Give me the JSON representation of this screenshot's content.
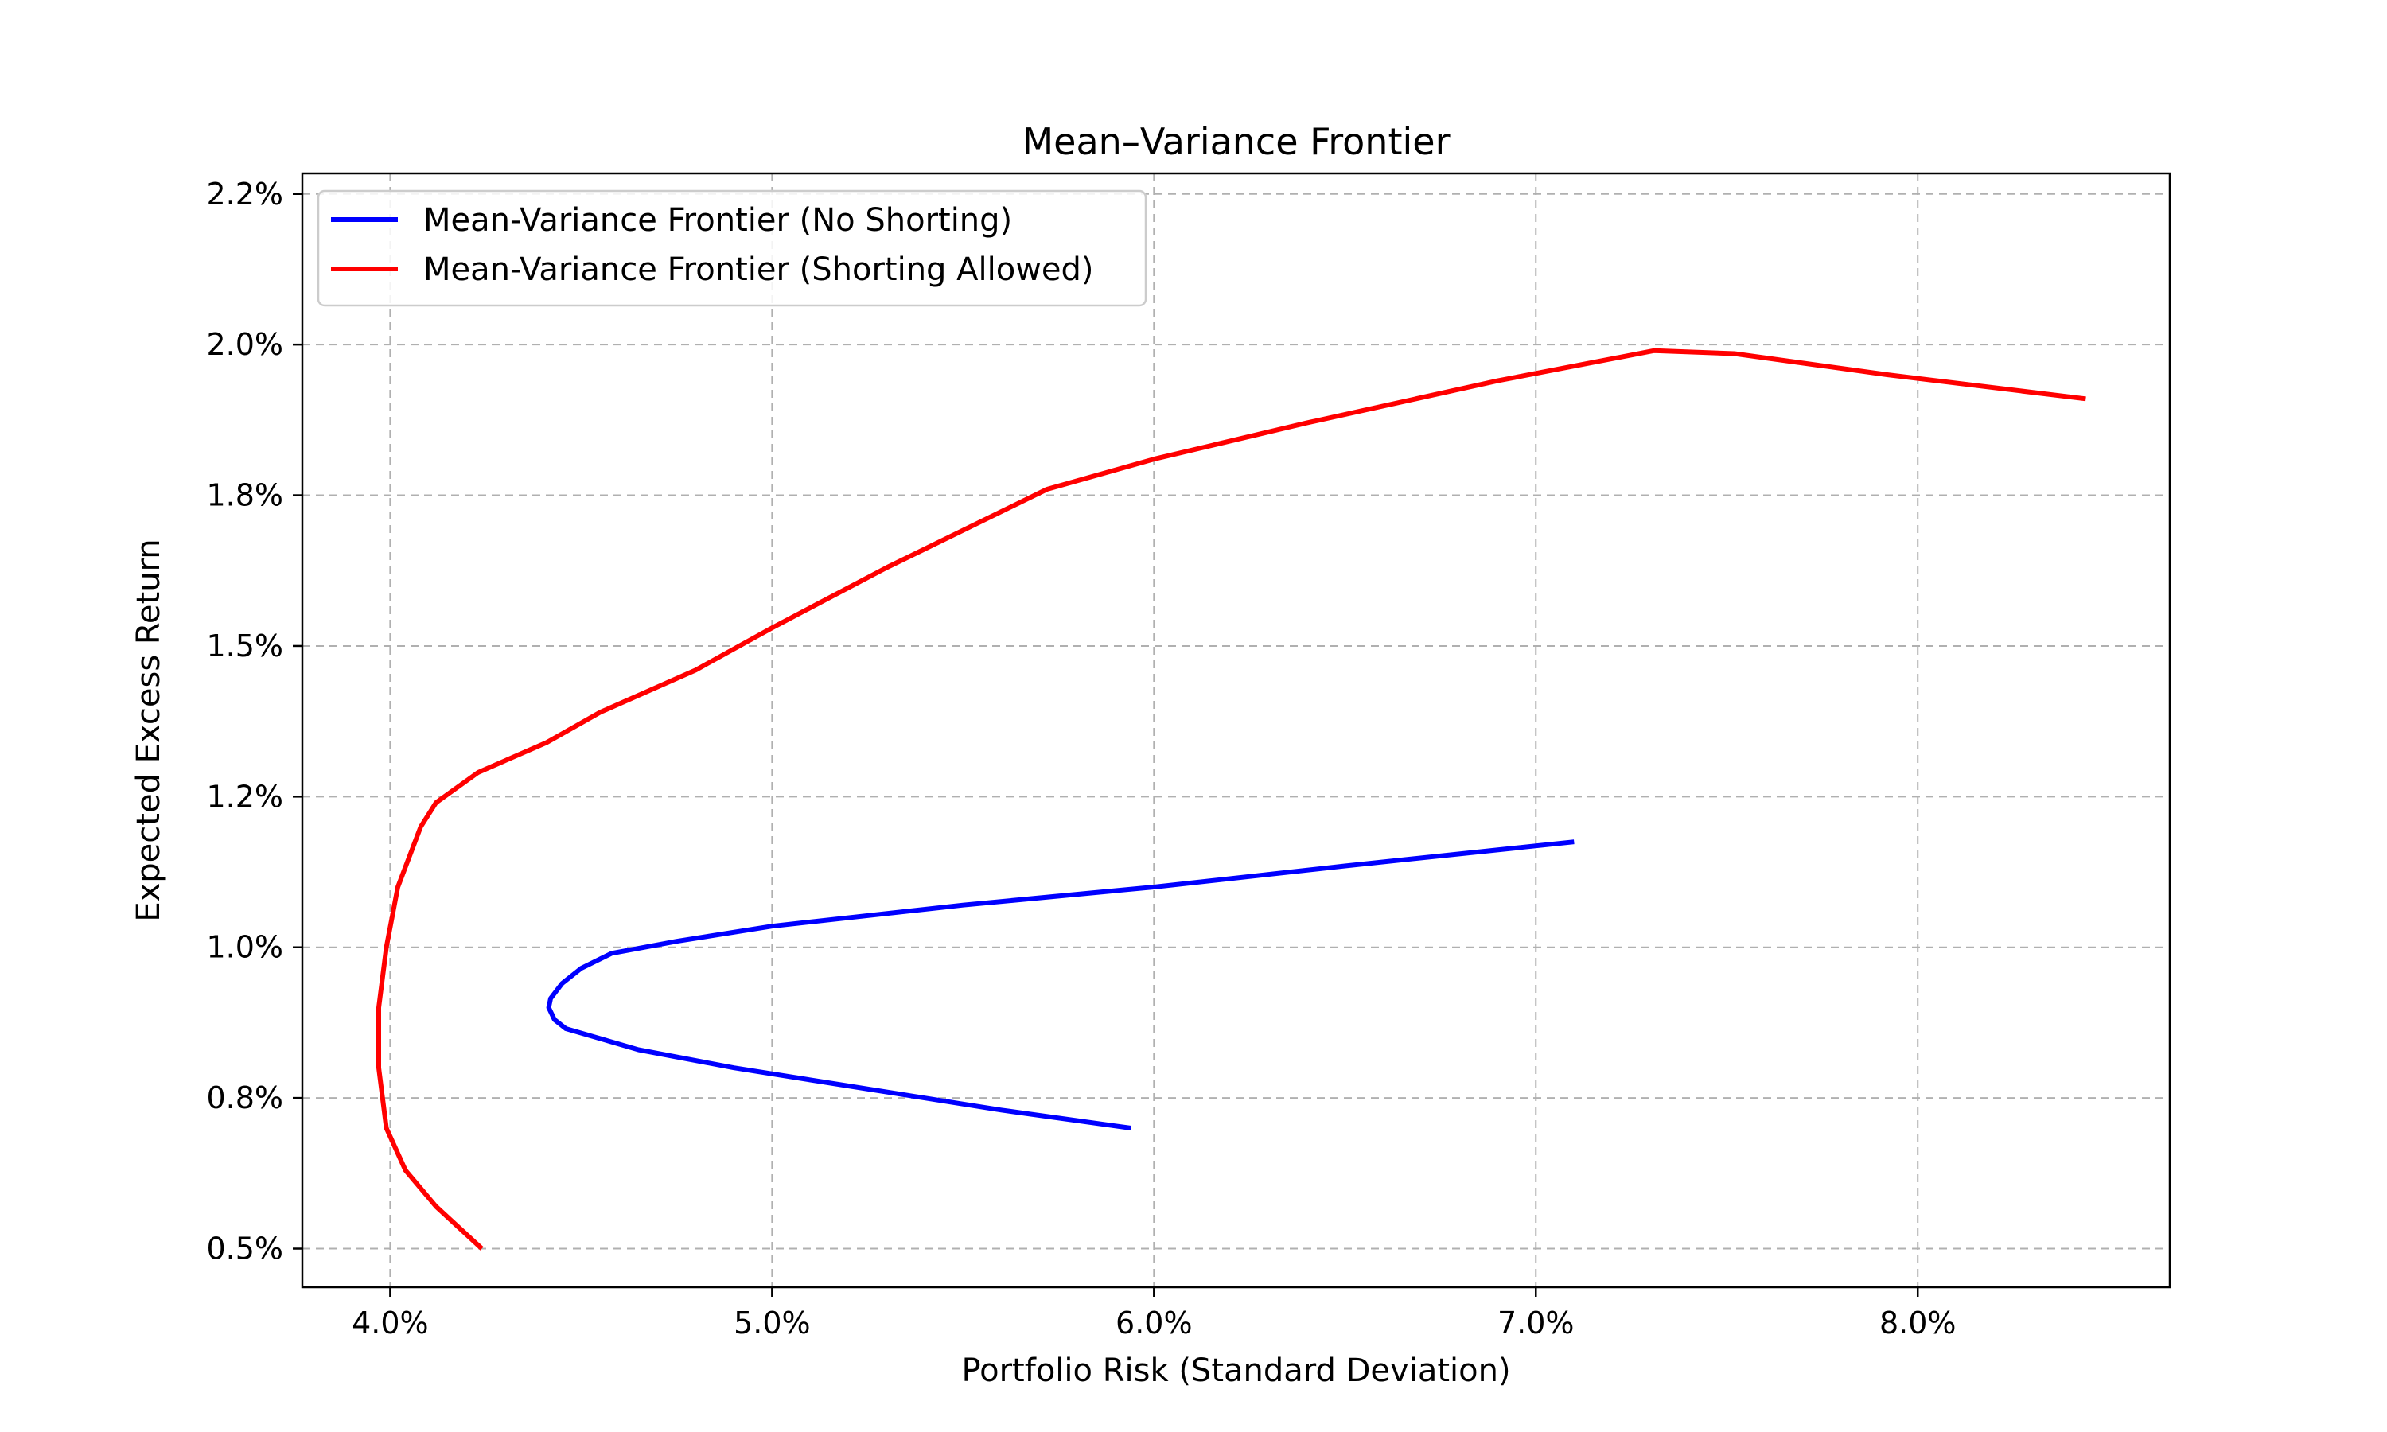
{
  "chart_data": {
    "type": "line",
    "title": "Mean–Variance Frontier",
    "xlabel": "Portfolio Risk (Standard Deviation)",
    "ylabel": "Expected Excess Return",
    "xlim": [
      3.77,
      8.66
    ],
    "ylim": [
      0.436,
      2.284
    ],
    "x_ticks": [
      4.0,
      5.0,
      6.0,
      7.0,
      8.0
    ],
    "x_tick_labels": [
      "4.0%",
      "5.0%",
      "6.0%",
      "7.0%",
      "8.0%"
    ],
    "y_ticks": [
      0.5,
      0.75,
      1.0,
      1.25,
      1.5,
      1.75,
      2.0,
      2.25
    ],
    "y_tick_labels": [
      "0.5%",
      "0.8%",
      "1.0%",
      "1.2%",
      "1.5%",
      "1.8%",
      "2.0%",
      "2.2%"
    ],
    "grid": true,
    "legend_position": "upper-left",
    "series": [
      {
        "name": "Mean-Variance Frontier (No Shorting)",
        "color": "#0000ff",
        "points": [
          [
            5.94,
            0.7
          ],
          [
            5.6,
            0.73
          ],
          [
            5.2,
            0.77
          ],
          [
            4.9,
            0.8
          ],
          [
            4.65,
            0.83
          ],
          [
            4.46,
            0.865
          ],
          [
            4.43,
            0.88
          ],
          [
            4.415,
            0.9
          ],
          [
            4.42,
            0.915
          ],
          [
            4.45,
            0.94
          ],
          [
            4.5,
            0.965
          ],
          [
            4.58,
            0.99
          ],
          [
            4.75,
            1.01
          ],
          [
            5.0,
            1.035
          ],
          [
            5.5,
            1.07
          ],
          [
            6.0,
            1.1
          ],
          [
            6.5,
            1.135
          ],
          [
            7.1,
            1.175
          ]
        ]
      },
      {
        "name": "Mean-Variance Frontier (Shorting Allowed)",
        "color": "#ff0000",
        "points": [
          [
            4.24,
            0.5
          ],
          [
            4.12,
            0.57
          ],
          [
            4.04,
            0.63
          ],
          [
            3.99,
            0.7
          ],
          [
            3.97,
            0.8
          ],
          [
            3.97,
            0.9
          ],
          [
            3.99,
            1.0
          ],
          [
            4.02,
            1.1
          ],
          [
            4.08,
            1.2
          ],
          [
            4.12,
            1.24
          ],
          [
            4.23,
            1.29
          ],
          [
            4.41,
            1.34
          ],
          [
            4.55,
            1.39
          ],
          [
            4.8,
            1.46
          ],
          [
            5.0,
            1.53
          ],
          [
            5.3,
            1.63
          ],
          [
            5.72,
            1.76
          ],
          [
            6.0,
            1.81
          ],
          [
            6.4,
            1.87
          ],
          [
            6.9,
            1.94
          ],
          [
            7.31,
            1.99
          ],
          [
            7.52,
            1.985
          ],
          [
            7.92,
            1.95
          ],
          [
            8.44,
            1.91
          ]
        ]
      }
    ]
  }
}
